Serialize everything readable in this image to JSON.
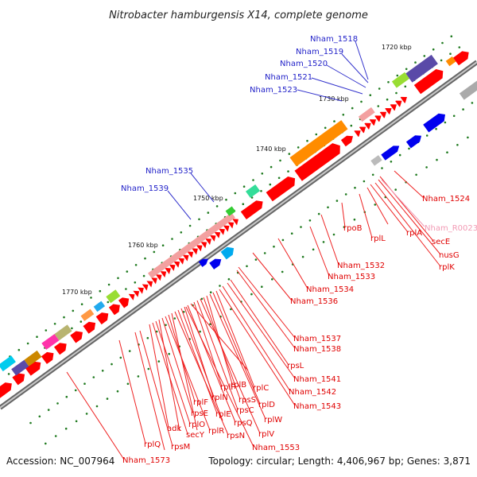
{
  "title": "Nitrobacter hamburgensis X14, complete genome",
  "footer": {
    "accession": "Accession: NC_007964",
    "summary": "Topology: circular; Length: 4,406,967 bp; Genes: 3,871"
  },
  "ticks": [
    "1720 kbp",
    "1730 kbp",
    "1740 kbp",
    "1750 kbp",
    "1760 kbp",
    "1770 kbp"
  ],
  "blue_labels": [
    "Nham_1518",
    "Nham_1519",
    "Nham_1520",
    "Nham_1521",
    "Nham_1523",
    "Nham_1535",
    "Nham_1539"
  ],
  "red_labels": [
    "Nham_1524",
    "secE",
    "nusG",
    "rplK",
    "rplA",
    "rplJ",
    "rplL",
    "rpoB",
    "Nham_1532",
    "Nham_1533",
    "Nham_1534",
    "Nham_1536",
    "Nham_1537",
    "Nham_1538",
    "rpsL",
    "Nham_1541",
    "Nham_1542",
    "Nham_1543",
    "rplC",
    "rplD",
    "rplW",
    "rplB",
    "rpsS",
    "rplV",
    "rpsC",
    "rplP",
    "rpmC",
    "rpsQ",
    "rplN",
    "rplX",
    "rplE",
    "rpsN",
    "rpsH",
    "rplF",
    "rplR",
    "rpsE",
    "rpmD",
    "rplO",
    "secY",
    "adk",
    "rpsM",
    "rpsK",
    "rplQ",
    "Nham_1553",
    "Nham_1573"
  ],
  "pink_labels": [
    "Nham_R0023"
  ],
  "colors": {
    "gene_red": "#ff0000",
    "gene_blue": "#0000ee",
    "backbone": "#777777",
    "tick_green": "#1f7a1f",
    "label_blue": "#1f1fc8",
    "label_red": "#e00000",
    "label_pink": "#f29ab4"
  }
}
